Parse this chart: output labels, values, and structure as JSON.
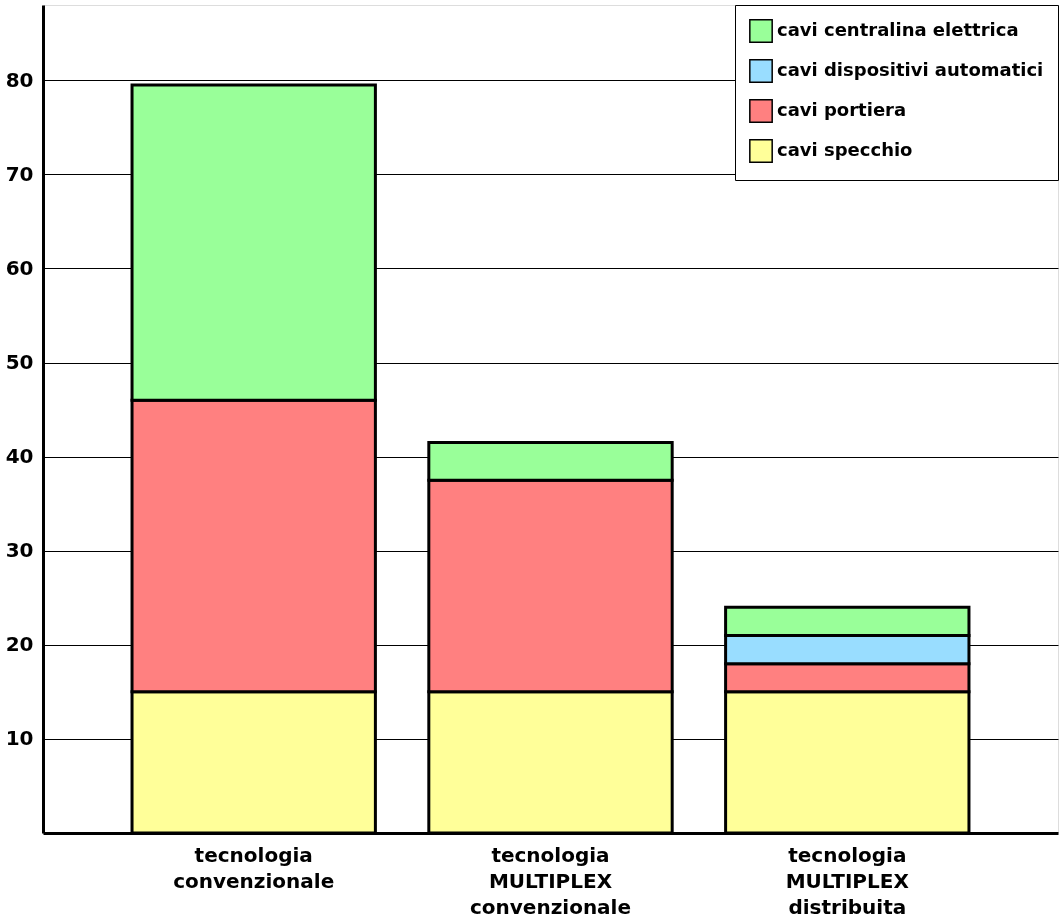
{
  "chart_data": {
    "type": "bar",
    "stacked": true,
    "categories": [
      "tecnologia\nconvenzionale",
      "tecnologia\nMULTIPLEX\nconvenzionale",
      "tecnologia\nMULTIPLEX\ndistribuita"
    ],
    "series": [
      {
        "name": "cavi specchio",
        "color": "#ffff99",
        "values": [
          15,
          15,
          15
        ]
      },
      {
        "name": "cavi portiera",
        "color": "#ff8080",
        "values": [
          31,
          22.5,
          3
        ]
      },
      {
        "name": "cavi dispositivi automatici",
        "color": "#99ddff",
        "values": [
          null,
          null,
          3
        ]
      },
      {
        "name": "cavi centralina elettrica",
        "color": "#99ff99",
        "values": [
          33.5,
          4,
          3
        ]
      }
    ],
    "ylim": [
      0,
      88
    ],
    "yticks": [
      10,
      20,
      30,
      40,
      50,
      60,
      70,
      80
    ],
    "grid": "y",
    "legend": "top right"
  }
}
